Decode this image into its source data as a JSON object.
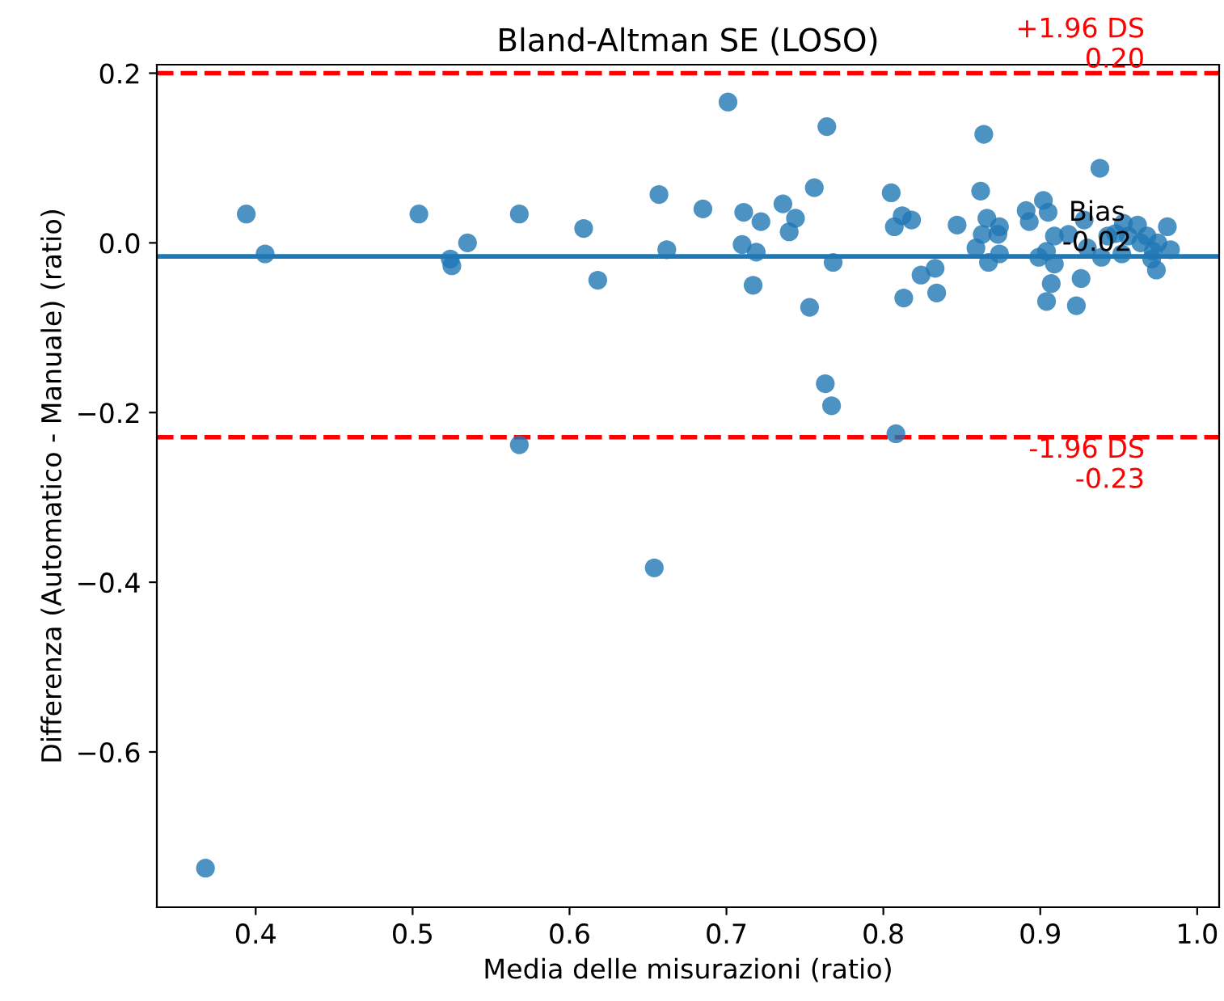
{
  "chart_data": {
    "type": "scatter",
    "title": "Bland-Altman SE (LOSO)",
    "xlabel": "Media delle misurazioni (ratio)",
    "ylabel": "Differenza (Automatico - Manuale) (ratio)",
    "xlim": [
      0.337,
      1.014
    ],
    "xticks": [
      {
        "value": 0.4,
        "label": "0.4"
      },
      {
        "value": 0.5,
        "label": "0.5"
      },
      {
        "value": 0.6,
        "label": "0.6"
      },
      {
        "value": 0.7,
        "label": "0.7"
      },
      {
        "value": 0.8,
        "label": "0.8"
      },
      {
        "value": 0.9,
        "label": "0.9"
      },
      {
        "value": 1.0,
        "label": "1.0"
      }
    ],
    "ylim": [
      -0.783,
      0.21
    ],
    "yticks": [
      {
        "value": -0.6,
        "label": "−0.6"
      },
      {
        "value": -0.4,
        "label": "−0.4"
      },
      {
        "value": -0.2,
        "label": "−0.2"
      },
      {
        "value": 0.0,
        "label": "0.0"
      },
      {
        "value": 0.2,
        "label": "0.2"
      }
    ],
    "grid": false,
    "legend": false,
    "marker": "circle",
    "series": [
      {
        "color": "#1f77b4",
        "x": [
          0.394,
          0.406,
          0.504,
          0.524,
          0.525,
          0.535,
          0.568,
          0.568,
          0.609,
          0.618,
          0.657,
          0.662,
          0.685,
          0.701,
          0.71,
          0.711,
          0.717,
          0.719,
          0.722,
          0.736,
          0.74,
          0.744,
          0.753,
          0.756,
          0.764,
          0.763,
          0.767,
          0.768,
          0.805,
          0.807,
          0.808,
          0.812,
          0.813,
          0.818,
          0.824,
          0.833,
          0.834,
          0.847,
          0.859,
          0.862,
          0.864,
          0.863,
          0.866,
          0.867,
          0.874,
          0.873,
          0.874,
          0.891,
          0.893,
          0.899,
          0.902,
          0.904,
          0.905,
          0.904,
          0.907,
          0.909,
          0.909,
          0.918,
          0.923,
          0.928,
          0.926,
          0.93,
          0.938,
          0.939,
          0.943,
          0.948,
          0.952,
          0.953,
          0.956,
          0.962,
          0.964,
          0.968,
          0.971,
          0.972,
          0.974,
          0.975,
          0.981,
          0.983,
          0.654,
          0.368
        ],
        "values": [
          0.034,
          -0.013,
          0.034,
          -0.019,
          -0.027,
          0.0,
          0.034,
          -0.238,
          0.017,
          -0.044,
          0.057,
          -0.008,
          0.04,
          0.166,
          -0.002,
          0.036,
          -0.05,
          -0.011,
          0.025,
          0.046,
          0.013,
          0.029,
          -0.076,
          0.065,
          0.137,
          -0.166,
          -0.192,
          -0.023,
          0.059,
          0.019,
          -0.225,
          0.032,
          -0.065,
          0.027,
          -0.038,
          -0.03,
          -0.059,
          0.021,
          -0.006,
          0.061,
          0.128,
          0.01,
          0.029,
          -0.023,
          0.019,
          0.01,
          -0.013,
          0.038,
          0.025,
          -0.017,
          0.05,
          -0.01,
          0.036,
          -0.069,
          -0.048,
          -0.025,
          0.008,
          0.01,
          -0.074,
          0.027,
          -0.042,
          -0.006,
          0.088,
          -0.017,
          0.008,
          0.011,
          -0.013,
          0.023,
          0.008,
          0.021,
          0.0,
          0.008,
          -0.019,
          -0.01,
          -0.032,
          0.0,
          0.019,
          -0.008,
          -0.383,
          -0.737
        ]
      }
    ],
    "ref_lines": [
      {
        "axis": "y",
        "value": 0.2,
        "label": "+1.96 DS\n0.20",
        "color": "#ff0000",
        "line_style": "dashed"
      },
      {
        "axis": "y",
        "value": -0.016,
        "label": "Bias\n-0.02",
        "color": "#1f77b4",
        "line_style": "solid"
      },
      {
        "axis": "y",
        "value": -0.229,
        "label": "-1.96 DS\n-0.23",
        "color": "#ff0000",
        "line_style": "dashed"
      }
    ]
  }
}
